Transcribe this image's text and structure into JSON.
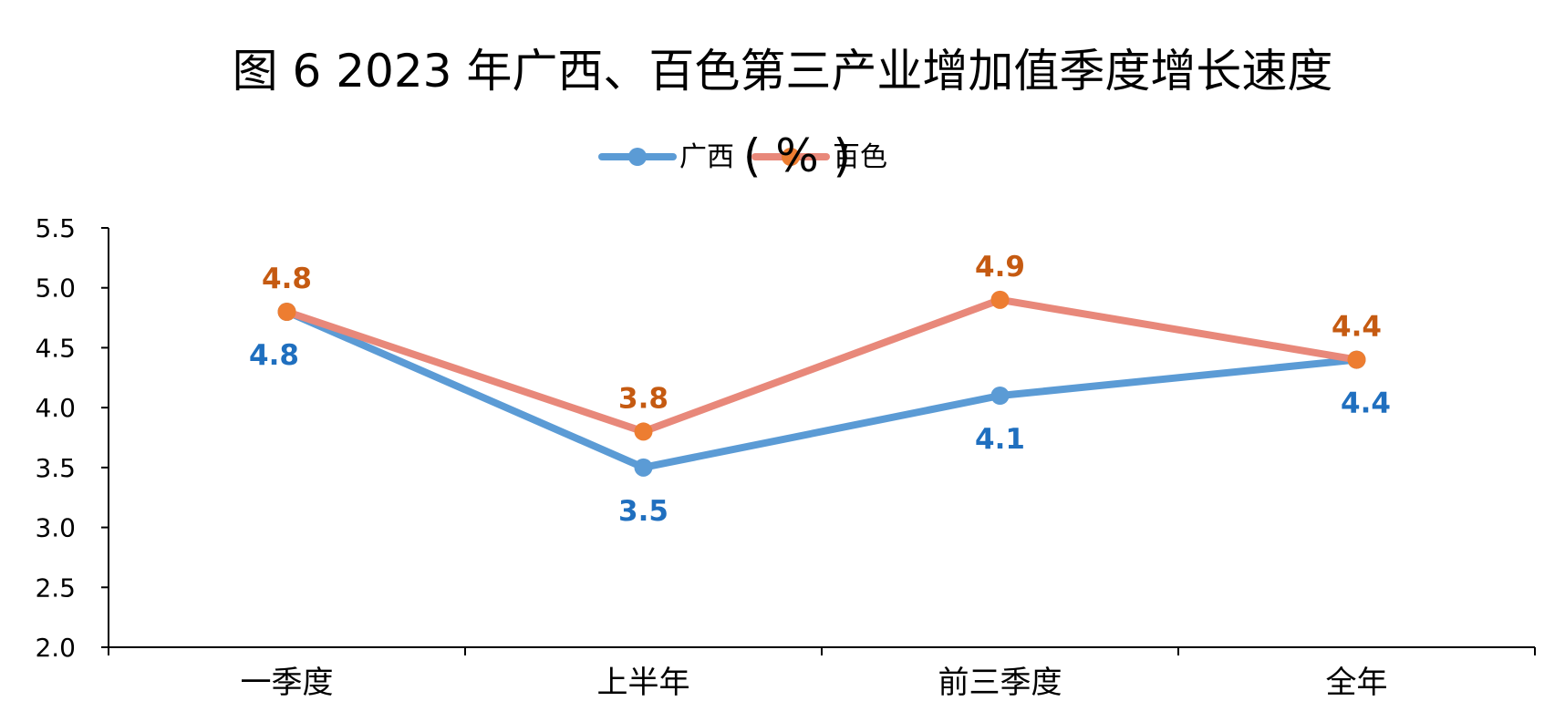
{
  "chart_data": {
    "type": "line",
    "title": "图 6    2023 年广西、百色第三产业增加值季度增长速度",
    "unit": "( % )",
    "categories": [
      "一季度",
      "上半年",
      "前三季度",
      "全年"
    ],
    "ylim": [
      2.0,
      5.5
    ],
    "yticks": [
      "5.5",
      "5.0",
      "4.5",
      "4.0",
      "3.5",
      "3.0",
      "2.5",
      "2.0"
    ],
    "legend_position": "top-center",
    "grid": false,
    "series": [
      {
        "name": "广西",
        "values": [
          4.8,
          3.5,
          4.1,
          4.4
        ],
        "labels": [
          "4.8",
          "3.5",
          "4.1",
          "4.4"
        ],
        "color": "#5B9BD5",
        "label_color": "#1F6FBF",
        "label_position": "below"
      },
      {
        "name": "百色",
        "values": [
          4.8,
          3.8,
          4.9,
          4.4
        ],
        "labels": [
          "4.8",
          "3.8",
          "4.9",
          "4.4"
        ],
        "color": "#E8887A",
        "marker_color": "#ED7D31",
        "label_color": "#C55A11",
        "label_position": "above"
      }
    ]
  }
}
